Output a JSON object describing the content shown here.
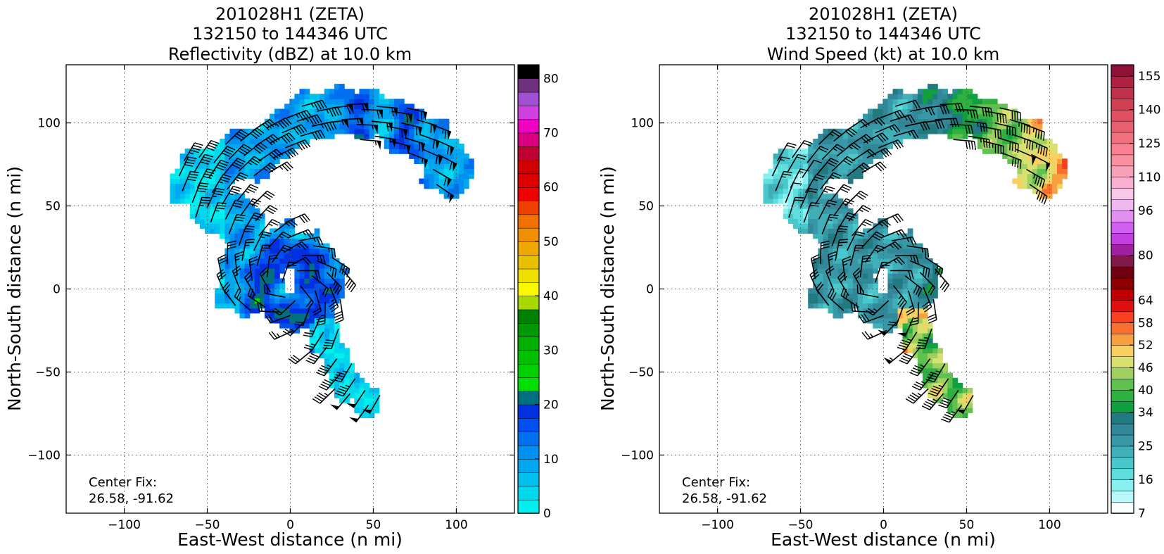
{
  "chart_data": [
    {
      "type": "heatmap",
      "title_lines": [
        "201028H1 (ZETA)",
        "132150 to 144346 UTC",
        "Reflectivity (dBZ) at 10.0 km"
      ],
      "xlabel": "East-West distance (n mi)",
      "ylabel": "North-South distance (n mi)",
      "xlim": [
        -135,
        135
      ],
      "ylim": [
        -135,
        135
      ],
      "xticks": [
        -100,
        -50,
        0,
        50,
        100
      ],
      "yticks": [
        -100,
        -50,
        0,
        50,
        100
      ],
      "xtick_labels": [
        "−100",
        "−50",
        "0",
        "50",
        "100"
      ],
      "ytick_labels": [
        "−100",
        "−50",
        "0",
        "50",
        "100"
      ],
      "grid": true,
      "annotation_lines": [
        "Center Fix:",
        "26.58, -91.62"
      ],
      "colorbar": {
        "levels": [
          0,
          2.5,
          5,
          7.5,
          10,
          12.5,
          15,
          17.5,
          20,
          22.5,
          25,
          27.5,
          30,
          32.5,
          35,
          37.5,
          40,
          42.5,
          45,
          47.5,
          50,
          52.5,
          55,
          57.5,
          60,
          62.5,
          65,
          67.5,
          70,
          72.5,
          75,
          77.5,
          80
        ],
        "colors": [
          "#00f0f0",
          "#00d8ee",
          "#00c0ee",
          "#00a8f0",
          "#0090f0",
          "#0070f0",
          "#0050f0",
          "#0030e0",
          "#007080",
          "#00e000",
          "#00d000",
          "#00c000",
          "#00b000",
          "#009800",
          "#008000",
          "#a8d800",
          "#f8f800",
          "#f0e000",
          "#e8c000",
          "#f0a800",
          "#f09000",
          "#f07000",
          "#f04000",
          "#f00000",
          "#e00000",
          "#d00000",
          "#c00030",
          "#d80080",
          "#f000c0",
          "#d040e0",
          "#a050d0",
          "#703080",
          "#000000"
        ],
        "tick_values": [
          0,
          10,
          20,
          30,
          40,
          50,
          60,
          70,
          80
        ],
        "tick_labels": [
          "0",
          "10",
          "20",
          "30",
          "40",
          "50",
          "60",
          "70",
          "80"
        ]
      }
    },
    {
      "type": "heatmap",
      "title_lines": [
        "201028H1 (ZETA)",
        "132150 to 144346 UTC",
        "Wind Speed (kt) at 10.0 km"
      ],
      "xlabel": "East-West distance (n mi)",
      "ylabel": "North-South distance (n mi)",
      "xlim": [
        -135,
        135
      ],
      "ylim": [
        -135,
        135
      ],
      "xticks": [
        -100,
        -50,
        0,
        50,
        100
      ],
      "yticks": [
        -100,
        -50,
        0,
        50,
        100
      ],
      "xtick_labels": [
        "−100",
        "−50",
        "0",
        "50",
        "100"
      ],
      "ytick_labels": [
        "−100",
        "−50",
        "0",
        "50",
        "100"
      ],
      "grid": true,
      "annotation_lines": [
        "Center Fix:",
        "26.58, -91.62"
      ],
      "colorbar": {
        "levels": [
          7,
          10,
          13,
          16,
          19,
          22,
          25,
          28,
          31,
          34,
          37,
          40,
          43,
          46,
          49,
          52,
          55,
          58,
          61,
          64,
          68,
          72,
          76,
          80,
          84,
          88,
          92,
          96,
          100,
          105,
          110,
          115,
          120,
          125,
          130,
          135,
          140,
          145,
          150,
          155,
          160
        ],
        "colors": [
          "#f8ffff",
          "#b8f8f8",
          "#88f0f0",
          "#60dede",
          "#48c8cc",
          "#40b0b8",
          "#3898a8",
          "#308898",
          "#207a80",
          "#10a040",
          "#30b040",
          "#60c050",
          "#a0d060",
          "#d8e070",
          "#f8d060",
          "#f8a040",
          "#f87030",
          "#f84020",
          "#e01010",
          "#c00000",
          "#8c0000",
          "#700010",
          "#801848",
          "#a020a0",
          "#c040e0",
          "#d060f0",
          "#e090f0",
          "#f0b8f0",
          "#f8c8e8",
          "#f8b0d0",
          "#f8a0b8",
          "#f890a0",
          "#f88090",
          "#f07080",
          "#e86070",
          "#e05060",
          "#d04050",
          "#c03048",
          "#b02040",
          "#901038"
        ],
        "tick_values": [
          7,
          16,
          25,
          34,
          40,
          46,
          52,
          58,
          64,
          80,
          96,
          110,
          125,
          140,
          155
        ],
        "tick_labels": [
          "7",
          "16",
          "25",
          "34",
          "40",
          "46",
          "52",
          "58",
          "64",
          "80",
          "96",
          "110",
          "125",
          "140",
          "155"
        ]
      }
    }
  ]
}
